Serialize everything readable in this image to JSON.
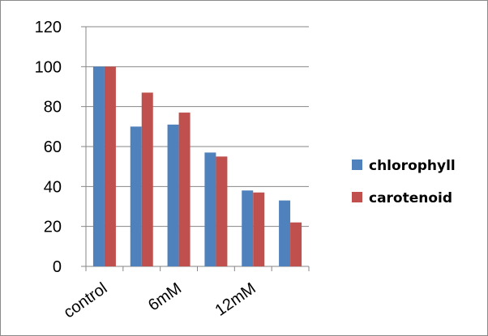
{
  "chart_data": {
    "type": "bar",
    "title": "",
    "xlabel": "",
    "ylabel": "",
    "ylim": [
      0,
      120
    ],
    "yticks": [
      0,
      20,
      40,
      60,
      80,
      100,
      120
    ],
    "grid": true,
    "legend_position": "right",
    "categories": [
      "control",
      "",
      "6mM",
      "",
      "12mM",
      ""
    ],
    "series": [
      {
        "name": "chlorophyll",
        "color": "#4f81bd",
        "values": [
          100,
          70,
          71,
          57,
          38,
          33
        ]
      },
      {
        "name": "carotenoid",
        "color": "#c0504d",
        "values": [
          100,
          87,
          77,
          55,
          37,
          22
        ]
      }
    ]
  }
}
